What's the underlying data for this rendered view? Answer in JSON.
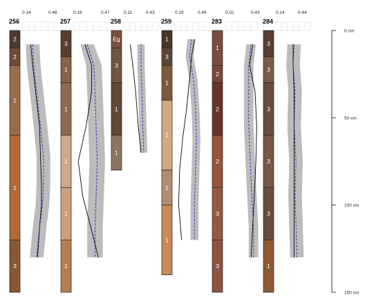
{
  "chart_data": {
    "type": "line",
    "title": "",
    "depth_axis": {
      "unit": "cm",
      "range": [
        0,
        150
      ],
      "ticks": [
        0,
        50,
        100,
        150
      ],
      "tick_labels": [
        "0 cm",
        "50 cm",
        "100 cm",
        "150 cm"
      ]
    },
    "profiles": [
      {
        "id": "256",
        "xrange_labels": [
          "0.14",
          "0.48"
        ],
        "xlim": [
          0.14,
          0.48
        ],
        "horizons": [
          {
            "top": 0,
            "bottom": 10,
            "label": "2",
            "color": "#4e3a30"
          },
          {
            "top": 10,
            "bottom": 20,
            "label": "2",
            "color": "#6e4b38"
          },
          {
            "top": 20,
            "bottom": 60,
            "label": "1",
            "color": "#9c6c4a"
          },
          {
            "top": 60,
            "bottom": 120,
            "label": "1",
            "color": "#b06a36"
          },
          {
            "top": 120,
            "bottom": 150,
            "label": "3",
            "color": "#8a5634"
          }
        ],
        "depth": [
          8,
          20,
          35,
          55,
          72,
          88,
          100,
          113,
          130
        ],
        "mean": [
          0.22,
          0.23,
          0.26,
          0.3,
          0.33,
          0.33,
          0.32,
          0.29,
          0.26
        ],
        "lower": [
          0.15,
          0.16,
          0.19,
          0.23,
          0.26,
          0.26,
          0.25,
          0.22,
          0.19
        ],
        "upper": [
          0.29,
          0.3,
          0.33,
          0.37,
          0.4,
          0.4,
          0.39,
          0.36,
          0.33
        ],
        "observed": [
          0.2,
          0.22,
          0.25,
          0.29,
          0.3,
          0.31,
          0.31,
          0.29,
          0.27
        ]
      },
      {
        "id": "257",
        "xrange_labels": [
          "0.16",
          "0.47"
        ],
        "xlim": [
          0.16,
          0.47
        ],
        "horizons": [
          {
            "top": 0,
            "bottom": 15,
            "label": "3",
            "color": "#5a3e30"
          },
          {
            "top": 15,
            "bottom": 30,
            "label": "1",
            "color": "#8a6248"
          },
          {
            "top": 30,
            "bottom": 60,
            "label": "1",
            "color": "#8f6a4e"
          },
          {
            "top": 60,
            "bottom": 90,
            "label": "1",
            "color": "#cfa887"
          },
          {
            "top": 90,
            "bottom": 120,
            "label": "1",
            "color": "#cca07a"
          },
          {
            "top": 120,
            "bottom": 150,
            "label": "1",
            "color": "#b47e52"
          }
        ],
        "depth": [
          8,
          20,
          35,
          55,
          75,
          95,
          112,
          130
        ],
        "mean": [
          0.26,
          0.32,
          0.33,
          0.34,
          0.35,
          0.34,
          0.33,
          0.33
        ],
        "lower": [
          0.2,
          0.25,
          0.26,
          0.27,
          0.28,
          0.27,
          0.26,
          0.26
        ],
        "upper": [
          0.32,
          0.39,
          0.4,
          0.41,
          0.42,
          0.41,
          0.4,
          0.4
        ],
        "observed": [
          0.24,
          0.3,
          0.3,
          0.25,
          0.18,
          0.22,
          0.29,
          0.36
        ]
      },
      {
        "id": "258",
        "xrange_labels": [
          "0.11",
          "0.43"
        ],
        "xlim": [
          0.11,
          0.43
        ],
        "horizons": [
          {
            "top": 0,
            "bottom": 10,
            "label": "Eg",
            "color": "#7a5040"
          },
          {
            "top": 10,
            "bottom": 30,
            "label": "3",
            "color": "#6e5446"
          },
          {
            "top": 30,
            "bottom": 60,
            "label": "1",
            "color": "#5e4838"
          },
          {
            "top": 60,
            "bottom": 80,
            "label": "1",
            "color": "#8c7464"
          }
        ],
        "depth": [
          8,
          20,
          35,
          55,
          70
        ],
        "mean": [
          0.27,
          0.27,
          0.28,
          0.29,
          0.3
        ],
        "lower": [
          0.23,
          0.23,
          0.24,
          0.25,
          0.26
        ],
        "upper": [
          0.31,
          0.31,
          0.32,
          0.33,
          0.34
        ],
        "observed": [
          0.15,
          0.18,
          0.21,
          0.24,
          0.27
        ]
      },
      {
        "id": "259",
        "xrange_labels": [
          "0.19",
          "0.49"
        ],
        "xlim": [
          0.19,
          0.49
        ],
        "horizons": [
          {
            "top": 0,
            "bottom": 10,
            "label": "1",
            "color": "#4a3426"
          },
          {
            "top": 10,
            "bottom": 20,
            "label": "3",
            "color": "#5e4434"
          },
          {
            "top": 20,
            "bottom": 40,
            "label": "1",
            "color": "#7c5a3c"
          },
          {
            "top": 40,
            "bottom": 80,
            "label": "1",
            "color": "#d2a880"
          },
          {
            "top": 80,
            "bottom": 100,
            "label": "1",
            "color": "#b28c74"
          },
          {
            "top": 100,
            "bottom": 140,
            "label": "1",
            "color": "#c88a56"
          }
        ],
        "depth": [
          5,
          15,
          28,
          45,
          62,
          80,
          100,
          120
        ],
        "mean": [
          0.33,
          0.31,
          0.35,
          0.37,
          0.38,
          0.37,
          0.36,
          0.36
        ],
        "lower": [
          0.29,
          0.27,
          0.31,
          0.33,
          0.34,
          0.33,
          0.32,
          0.32
        ],
        "upper": [
          0.37,
          0.35,
          0.39,
          0.41,
          0.42,
          0.41,
          0.4,
          0.4
        ],
        "observed": [
          0.36,
          0.33,
          0.31,
          0.28,
          0.24,
          0.21,
          0.2,
          0.23
        ]
      },
      {
        "id": "283",
        "xrange_labels": [
          "0.02",
          "0.43"
        ],
        "xlim": [
          0.02,
          0.43
        ],
        "horizons": [
          {
            "top": 0,
            "bottom": 20,
            "label": "1",
            "color": "#7a4e3a"
          },
          {
            "top": 20,
            "bottom": 30,
            "label": "2",
            "color": "#7a4834"
          },
          {
            "top": 30,
            "bottom": 60,
            "label": "2",
            "color": "#6a3424"
          },
          {
            "top": 60,
            "bottom": 90,
            "label": "2",
            "color": "#98543c"
          },
          {
            "top": 90,
            "bottom": 120,
            "label": "3",
            "color": "#975844"
          },
          {
            "top": 120,
            "bottom": 150,
            "label": "3",
            "color": "#8f5240"
          }
        ],
        "depth": [
          8,
          20,
          35,
          55,
          75,
          95,
          112,
          130
        ],
        "mean": [
          0.31,
          0.28,
          0.28,
          0.28,
          0.3,
          0.32,
          0.34,
          0.34
        ],
        "lower": [
          0.25,
          0.22,
          0.22,
          0.22,
          0.24,
          0.26,
          0.28,
          0.28
        ],
        "upper": [
          0.37,
          0.34,
          0.34,
          0.34,
          0.36,
          0.38,
          0.4,
          0.4
        ],
        "observed": [
          0.33,
          0.29,
          0.36,
          0.38,
          0.37,
          0.35,
          0.33,
          0.31
        ]
      },
      {
        "id": "284",
        "xrange_labels": [
          "0.14",
          "0.44"
        ],
        "xlim": [
          0.14,
          0.44
        ],
        "horizons": [
          {
            "top": 0,
            "bottom": 15,
            "label": "3",
            "color": "#5a3e30"
          },
          {
            "top": 15,
            "bottom": 30,
            "label": "3",
            "color": "#7e5a44"
          },
          {
            "top": 30,
            "bottom": 60,
            "label": "3",
            "color": "#6c4c3a"
          },
          {
            "top": 60,
            "bottom": 90,
            "label": "3",
            "color": "#7a5644"
          },
          {
            "top": 90,
            "bottom": 120,
            "label": "3",
            "color": "#6c4c3a"
          },
          {
            "top": 120,
            "bottom": 150,
            "label": "1",
            "color": "#8c5a34"
          }
        ],
        "depth": [
          8,
          20,
          35,
          55,
          75,
          95,
          112,
          130
        ],
        "mean": [
          0.3,
          0.29,
          0.31,
          0.3,
          0.32,
          0.31,
          0.32,
          0.33
        ],
        "lower": [
          0.23,
          0.22,
          0.24,
          0.23,
          0.25,
          0.24,
          0.25,
          0.26
        ],
        "upper": [
          0.37,
          0.36,
          0.38,
          0.37,
          0.39,
          0.38,
          0.39,
          0.4
        ],
        "observed": [
          0.29,
          0.29,
          0.3,
          0.3,
          0.3,
          0.3,
          0.3,
          0.3
        ]
      }
    ],
    "styles": {
      "band_color": "#bcbcbc",
      "mean_color": "#1f28c8",
      "observed_color": "#000000"
    }
  }
}
